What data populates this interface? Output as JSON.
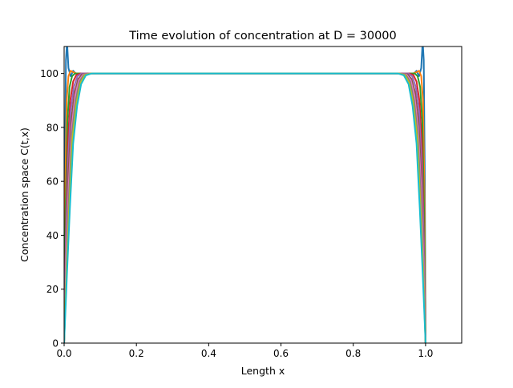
{
  "chart_data": {
    "type": "line",
    "title": "Time evolution of concentration at D = 30000",
    "xlabel": "Length x",
    "ylabel": "Concentration space C(t,x)",
    "xlim": [
      0.0,
      1.1
    ],
    "ylim": [
      0,
      110
    ],
    "xticks": [
      "0.0",
      "0.2",
      "0.4",
      "0.6",
      "0.8",
      "1.0"
    ],
    "yticks": [
      "0",
      "20",
      "40",
      "60",
      "80",
      "100"
    ],
    "grid": false,
    "legend": "none",
    "plateau_value": 100,
    "series": [
      {
        "color": "#1f77b4",
        "x": [
          0.0,
          0.002,
          0.005,
          0.008,
          0.012,
          0.018,
          0.025,
          0.032,
          0.045,
          0.06,
          0.1,
          0.5,
          0.9,
          0.94,
          0.955,
          0.968,
          0.975,
          0.982,
          0.988,
          0.992,
          0.995,
          0.998,
          1.0
        ],
        "y": [
          0,
          60,
          105,
          112,
          102,
          99,
          101,
          100,
          100,
          100,
          100,
          100,
          100,
          100,
          100,
          100,
          101,
          99,
          102,
          112,
          105,
          60,
          0
        ]
      },
      {
        "color": "#ff7f0e",
        "x": [
          0.0,
          0.003,
          0.007,
          0.012,
          0.018,
          0.025,
          0.035,
          0.05,
          0.1,
          0.5,
          0.9,
          0.95,
          0.965,
          0.975,
          0.982,
          0.988,
          0.993,
          0.997,
          1.0
        ],
        "y": [
          0,
          55,
          90,
          99,
          101,
          100.5,
          100,
          100,
          100,
          100,
          100,
          100,
          100,
          100.5,
          101,
          99,
          90,
          55,
          0
        ]
      },
      {
        "color": "#2ca02c",
        "x": [
          0.0,
          0.004,
          0.009,
          0.015,
          0.022,
          0.03,
          0.04,
          0.055,
          0.1,
          0.5,
          0.9,
          0.945,
          0.96,
          0.97,
          0.978,
          0.985,
          0.991,
          0.996,
          1.0
        ],
        "y": [
          0,
          48,
          82,
          95,
          99,
          100,
          100,
          100,
          100,
          100,
          100,
          100,
          100,
          100,
          99,
          95,
          82,
          48,
          0
        ]
      },
      {
        "color": "#d62728",
        "x": [
          0.0,
          0.005,
          0.01,
          0.017,
          0.025,
          0.034,
          0.045,
          0.06,
          0.1,
          0.5,
          0.9,
          0.94,
          0.955,
          0.966,
          0.975,
          0.983,
          0.99,
          0.995,
          1.0
        ],
        "y": [
          0,
          42,
          74,
          90,
          97,
          99.5,
          100,
          100,
          100,
          100,
          100,
          100,
          100,
          99.5,
          97,
          90,
          74,
          42,
          0
        ]
      },
      {
        "color": "#9467bd",
        "x": [
          0.0,
          0.005,
          0.011,
          0.018,
          0.027,
          0.037,
          0.048,
          0.065,
          0.1,
          0.5,
          0.9,
          0.935,
          0.952,
          0.963,
          0.973,
          0.982,
          0.989,
          0.995,
          1.0
        ],
        "y": [
          0,
          38,
          68,
          86,
          95,
          99,
          100,
          100,
          100,
          100,
          100,
          100,
          100,
          99,
          95,
          86,
          68,
          38,
          0
        ]
      },
      {
        "color": "#8c564b",
        "x": [
          0.0,
          0.006,
          0.012,
          0.02,
          0.029,
          0.039,
          0.05,
          0.068,
          0.1,
          0.5,
          0.9,
          0.932,
          0.95,
          0.961,
          0.971,
          0.98,
          0.988,
          0.994,
          1.0
        ],
        "y": [
          0,
          35,
          63,
          83,
          93,
          98,
          99.7,
          100,
          100,
          100,
          100,
          100,
          99.7,
          98,
          93,
          83,
          63,
          35,
          0
        ]
      },
      {
        "color": "#e377c2",
        "x": [
          0.0,
          0.006,
          0.013,
          0.021,
          0.031,
          0.041,
          0.053,
          0.07,
          0.1,
          0.5,
          0.9,
          0.93,
          0.947,
          0.959,
          0.969,
          0.979,
          0.987,
          0.994,
          1.0
        ],
        "y": [
          0,
          32,
          59,
          80,
          92,
          97.5,
          99.6,
          100,
          100,
          100,
          100,
          100,
          99.6,
          97.5,
          92,
          80,
          59,
          32,
          0
        ]
      },
      {
        "color": "#7f7f7f",
        "x": [
          0.0,
          0.007,
          0.014,
          0.022,
          0.032,
          0.043,
          0.055,
          0.072,
          0.1,
          0.5,
          0.9,
          0.928,
          0.945,
          0.957,
          0.968,
          0.978,
          0.986,
          0.993,
          1.0
        ],
        "y": [
          0,
          30,
          56,
          78,
          90,
          97,
          99.5,
          100,
          100,
          100,
          100,
          100,
          99.5,
          97,
          90,
          78,
          56,
          30,
          0
        ]
      },
      {
        "color": "#bcbd22",
        "x": [
          0.0,
          0.007,
          0.015,
          0.023,
          0.034,
          0.045,
          0.057,
          0.074,
          0.1,
          0.5,
          0.9,
          0.926,
          0.943,
          0.955,
          0.966,
          0.977,
          0.985,
          0.993,
          1.0
        ],
        "y": [
          0,
          28,
          53,
          76,
          89,
          96.5,
          99.4,
          100,
          100,
          100,
          100,
          100,
          99.4,
          96.5,
          89,
          76,
          53,
          28,
          0
        ]
      },
      {
        "color": "#17becf",
        "x": [
          0.0,
          0.008,
          0.016,
          0.025,
          0.036,
          0.047,
          0.06,
          0.076,
          0.1,
          0.5,
          0.9,
          0.924,
          0.94,
          0.953,
          0.964,
          0.975,
          0.984,
          0.992,
          1.0
        ],
        "y": [
          0,
          26,
          50,
          74,
          88,
          96,
          99.3,
          100,
          100,
          100,
          100,
          100,
          99.3,
          96,
          88,
          74,
          50,
          26,
          0
        ]
      }
    ]
  }
}
